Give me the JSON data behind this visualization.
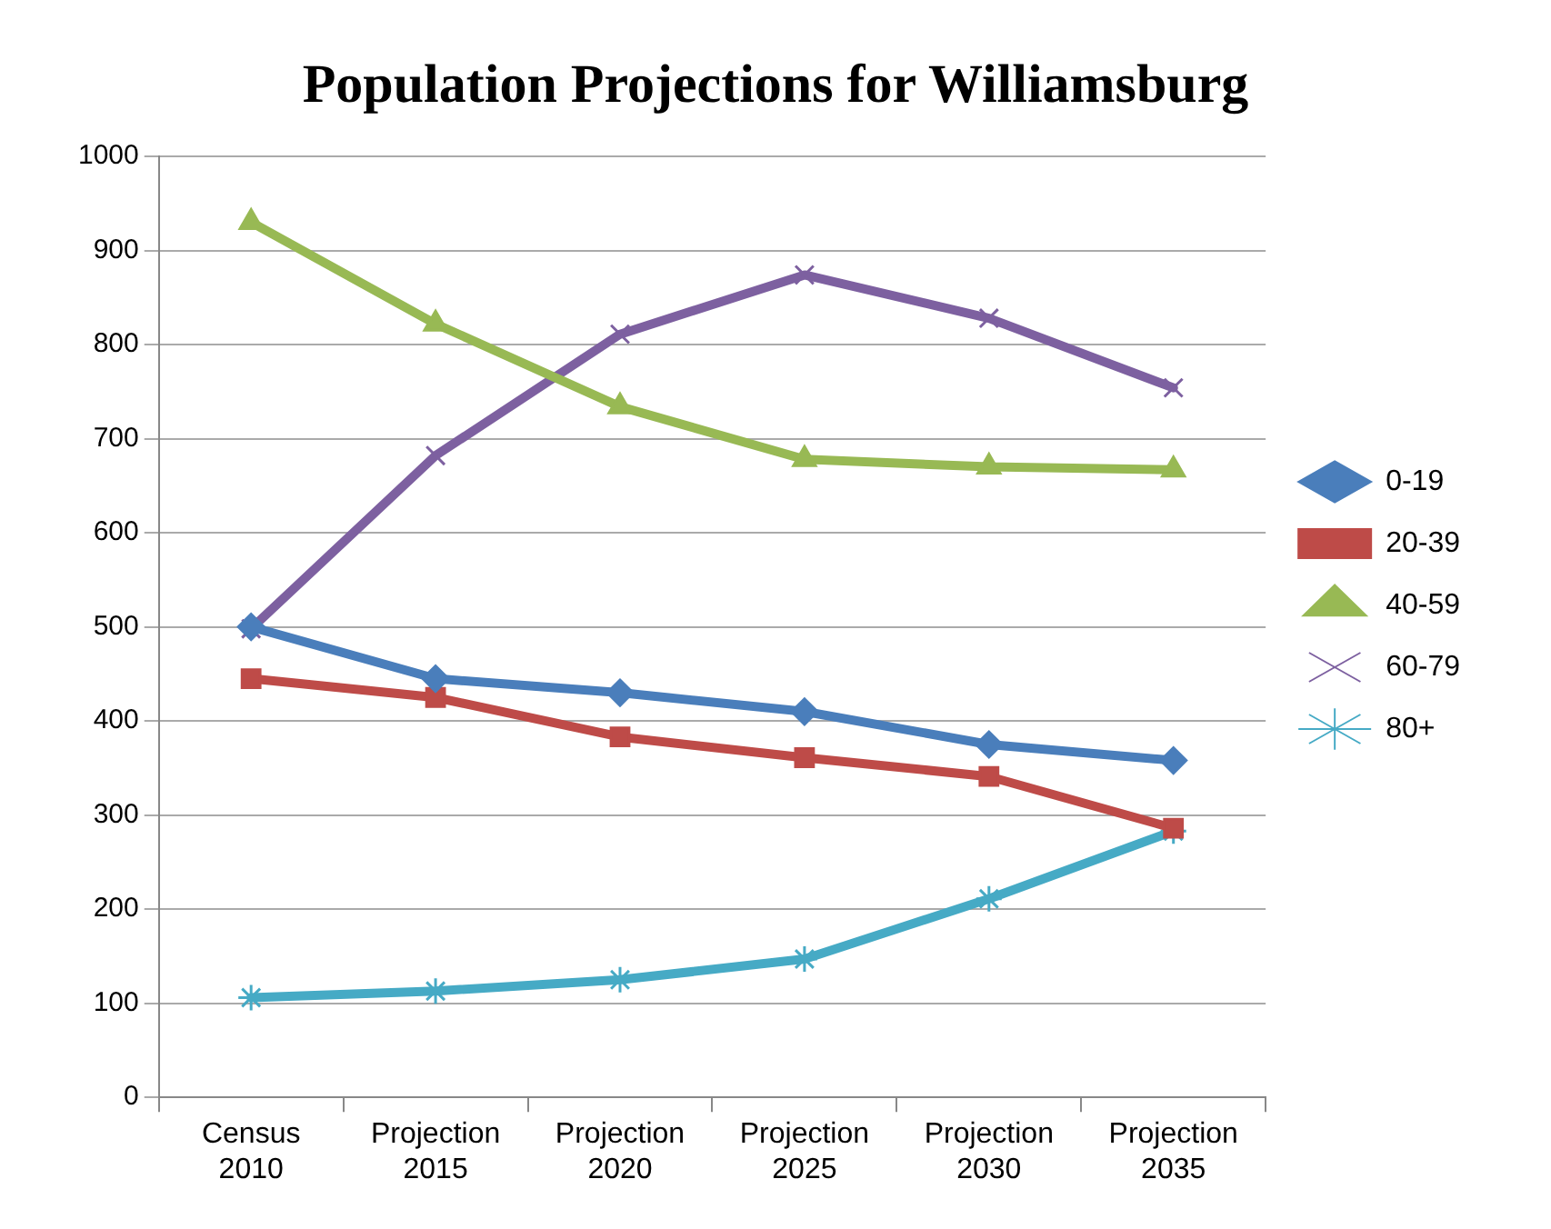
{
  "chart_data": {
    "type": "line",
    "title": "Population Projections for Williamsburg",
    "categories": [
      "Census 2010",
      "Projection 2015",
      "Projection 2020",
      "Projection 2025",
      "Projection 2030",
      "Projection 2035"
    ],
    "series": [
      {
        "name": "0-19",
        "color": "#4a7ebb",
        "marker": "diamond",
        "values": [
          500,
          445,
          430,
          410,
          375,
          358
        ]
      },
      {
        "name": "20-39",
        "color": "#be4b48",
        "marker": "square",
        "values": [
          445,
          425,
          383,
          361,
          341,
          286
        ]
      },
      {
        "name": "40-59",
        "color": "#98b954",
        "marker": "triangle",
        "values": [
          930,
          822,
          734,
          678,
          670,
          667
        ]
      },
      {
        "name": "60-79",
        "color": "#7d60a0",
        "marker": "cross",
        "values": [
          498,
          682,
          811,
          874,
          828,
          754
        ]
      },
      {
        "name": "80+",
        "color": "#46aac5",
        "marker": "cross",
        "values": [
          106,
          113,
          125,
          147,
          211,
          283
        ]
      }
    ],
    "ylim": [
      0,
      1000
    ],
    "yticks": [
      0,
      100,
      200,
      300,
      400,
      500,
      600,
      700,
      800,
      900,
      1000
    ],
    "grid": "y",
    "legend": "right",
    "line_style": "solid"
  }
}
